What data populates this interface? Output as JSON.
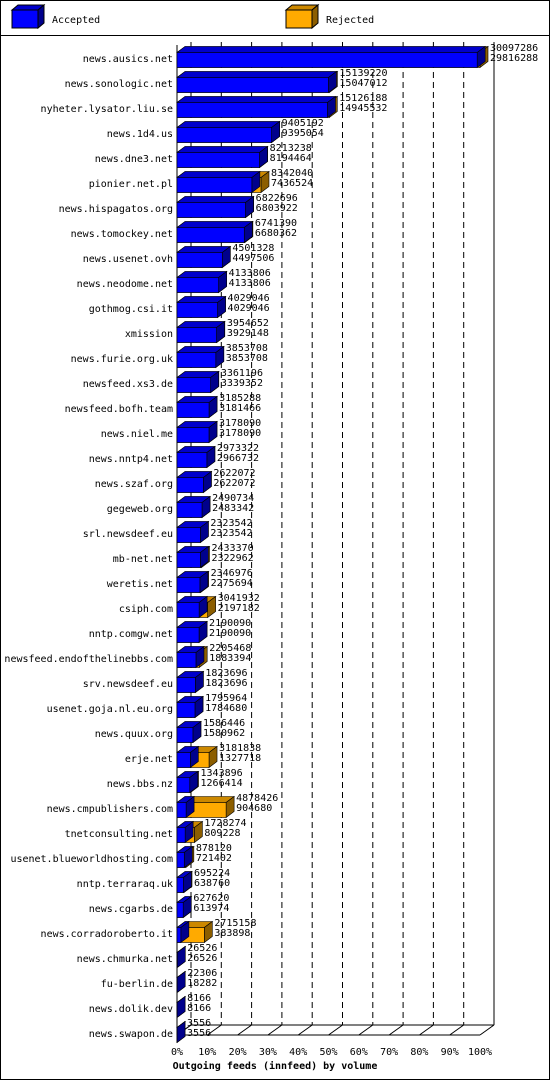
{
  "chart_data": {
    "type": "bar",
    "orientation": "horizontal",
    "overlap": true,
    "title": "Outgoing feeds (innfeed) by volume",
    "categories": [
      "news.ausics.net",
      "news.sonologic.net",
      "nyheter.lysator.liu.se",
      "news.1d4.us",
      "news.dne3.net",
      "pionier.net.pl",
      "news.hispagatos.org",
      "news.tomockey.net",
      "news.usenet.ovh",
      "news.neodome.net",
      "gothmog.csi.it",
      "xmission",
      "news.furie.org.uk",
      "newsfeed.xs3.de",
      "newsfeed.bofh.team",
      "news.niel.me",
      "news.nntp4.net",
      "news.szaf.org",
      "gegeweb.org",
      "srl.newsdeef.eu",
      "mb-net.net",
      "weretis.net",
      "csiph.com",
      "nntp.comgw.net",
      "newsfeed.endofthelinebbs.com",
      "srv.newsdeef.eu",
      "usenet.goja.nl.eu.org",
      "news.quux.org",
      "erje.net",
      "news.bbs.nz",
      "news.cmpublishers.com",
      "tnetconsulting.net",
      "usenet.blueworldhosting.com",
      "nntp.terraraq.uk",
      "news.cgarbs.de",
      "news.corradoroberto.it",
      "news.chmurka.net",
      "fu-berlin.de",
      "news.dolik.dev",
      "news.swapon.de"
    ],
    "series": [
      {
        "name": "Accepted",
        "color": "#0000ff",
        "values": [
          29816288,
          15047012,
          14945532,
          9395054,
          8194464,
          7436524,
          6803922,
          6680362,
          4497506,
          4133806,
          4029046,
          3929148,
          3853708,
          3339352,
          3181466,
          3178090,
          2966732,
          2622072,
          2483342,
          2323542,
          2322962,
          2275694,
          2197182,
          2190090,
          1883394,
          1823696,
          1784680,
          1580962,
          1327718,
          1266414,
          904680,
          809228,
          721402,
          638760,
          613974,
          383898,
          26526,
          18282,
          8166,
          3556
        ]
      },
      {
        "name": "Rejected",
        "color": "#ffaa00",
        "values": [
          30097286,
          15139220,
          15126188,
          9405192,
          8213238,
          8342040,
          6822696,
          6741390,
          4501328,
          4133806,
          4029046,
          3954652,
          3853708,
          3361196,
          3185288,
          3178090,
          2973322,
          2622072,
          2490734,
          2323542,
          2433370,
          2346976,
          3041932,
          2190090,
          2205468,
          1823696,
          1795964,
          1586446,
          3181838,
          1343896,
          4878426,
          1728274,
          878120,
          695224,
          627620,
          2715158,
          26526,
          22306,
          8166,
          3556
        ]
      }
    ],
    "xlim": [
      0,
      30097286
    ],
    "xticks": [
      {
        "value": 0,
        "label": "0%"
      },
      {
        "value": 3009728.6,
        "label": "10%"
      },
      {
        "value": 6019457.2,
        "label": "20%"
      },
      {
        "value": 9029185.8,
        "label": "30%"
      },
      {
        "value": 12038914.4,
        "label": "40%"
      },
      {
        "value": 15048643,
        "label": "50%"
      },
      {
        "value": 18058371.6,
        "label": "60%"
      },
      {
        "value": 21068100.2,
        "label": "70%"
      },
      {
        "value": 24077828.8,
        "label": "80%"
      },
      {
        "value": 27087557.4,
        "label": "90%"
      },
      {
        "value": 30097286,
        "label": "100%"
      }
    ],
    "grid": true
  }
}
